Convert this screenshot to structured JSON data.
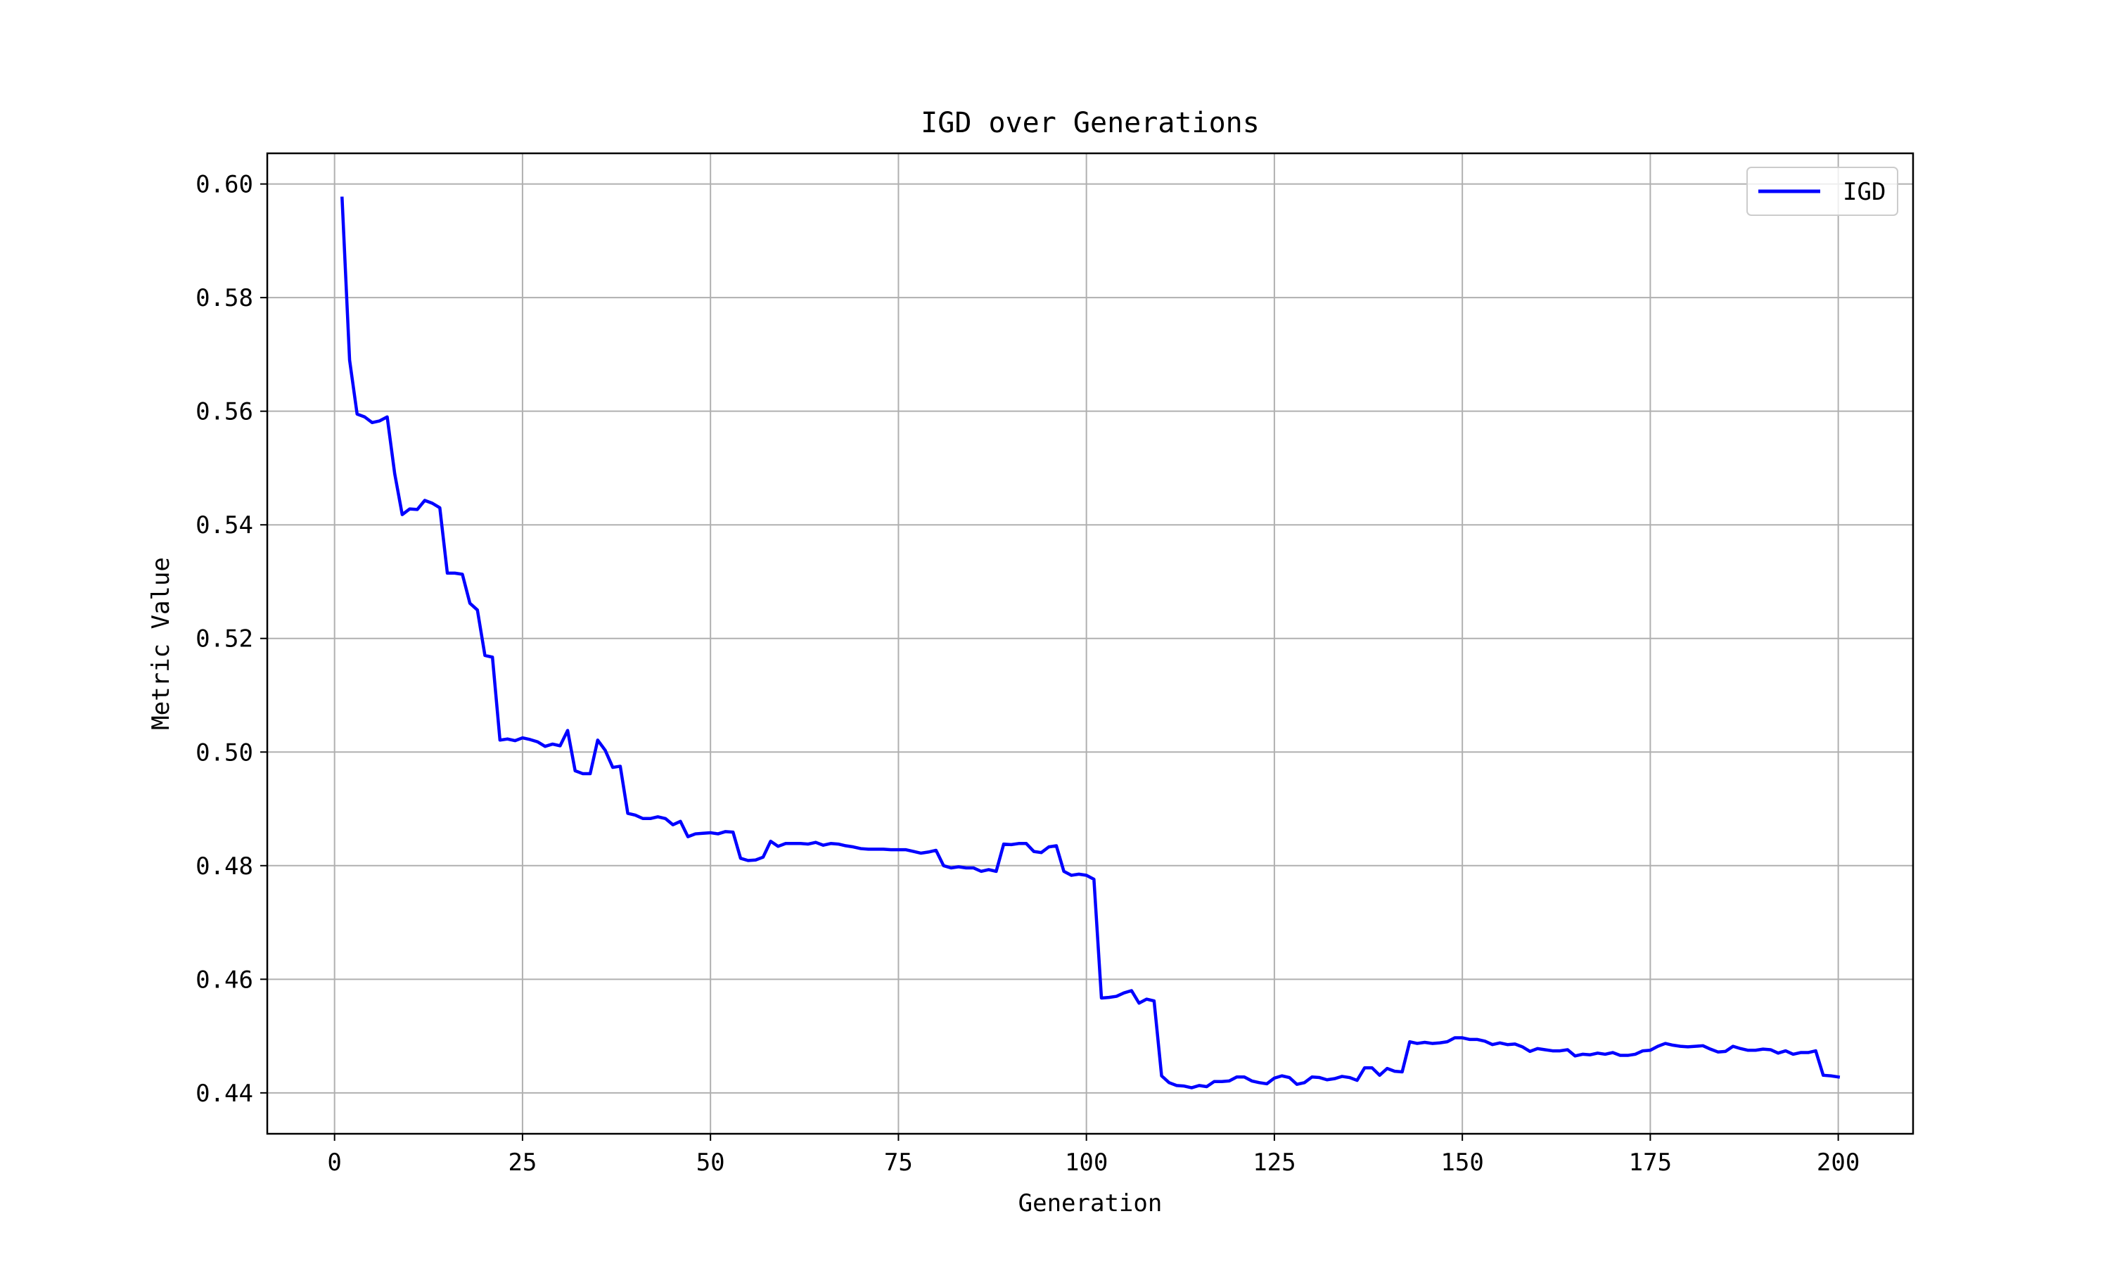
{
  "chart_data": {
    "type": "line",
    "title": "IGD over Generations",
    "xlabel": "Generation",
    "ylabel": "Metric Value",
    "xlim": [
      -8.95,
      209.95
    ],
    "ylim": [
      0.4328,
      0.6054
    ],
    "xticks": [
      0,
      25,
      50,
      75,
      100,
      125,
      150,
      175,
      200
    ],
    "xtick_labels": [
      "0",
      "25",
      "50",
      "75",
      "100",
      "125",
      "150",
      "175",
      "200"
    ],
    "yticks": [
      0.44,
      0.46,
      0.48,
      0.5,
      0.52,
      0.54,
      0.56,
      0.58,
      0.6
    ],
    "ytick_labels": [
      "0.44",
      "0.46",
      "0.48",
      "0.50",
      "0.52",
      "0.54",
      "0.56",
      "0.58",
      "0.60"
    ],
    "grid": true,
    "legend_position": "top-right",
    "series": [
      {
        "name": "IGD",
        "color": "#0000ff",
        "x": [
          1,
          2,
          3,
          4,
          5,
          6,
          7,
          8,
          9,
          10,
          11,
          12,
          13,
          14,
          15,
          16,
          17,
          18,
          19,
          20,
          21,
          22,
          23,
          24,
          25,
          26,
          27,
          28,
          29,
          30,
          31,
          32,
          33,
          34,
          35,
          36,
          37,
          38,
          39,
          40,
          41,
          42,
          43,
          44,
          45,
          46,
          47,
          48,
          49,
          50,
          51,
          52,
          53,
          54,
          55,
          56,
          57,
          58,
          59,
          60,
          61,
          62,
          63,
          64,
          65,
          66,
          67,
          68,
          69,
          70,
          71,
          72,
          73,
          74,
          75,
          76,
          77,
          78,
          79,
          80,
          81,
          82,
          83,
          84,
          85,
          86,
          87,
          88,
          89,
          90,
          91,
          92,
          93,
          94,
          95,
          96,
          97,
          98,
          99,
          100,
          101,
          102,
          103,
          104,
          105,
          106,
          107,
          108,
          109,
          110,
          111,
          112,
          113,
          114,
          115,
          116,
          117,
          118,
          119,
          120,
          121,
          122,
          123,
          124,
          125,
          126,
          127,
          128,
          129,
          130,
          131,
          132,
          133,
          134,
          135,
          136,
          137,
          138,
          139,
          140,
          141,
          142,
          143,
          144,
          145,
          146,
          147,
          148,
          149,
          150,
          151,
          152,
          153,
          154,
          155,
          156,
          157,
          158,
          159,
          160,
          161,
          162,
          163,
          164,
          165,
          166,
          167,
          168,
          169,
          170,
          171,
          172,
          173,
          174,
          175,
          176,
          177,
          178,
          179,
          180,
          181,
          182,
          183,
          184,
          185,
          186,
          187,
          188,
          189,
          190,
          191,
          192,
          193,
          194,
          195,
          196,
          197,
          198,
          199,
          200
        ],
        "values": [
          0.5975,
          0.569,
          0.5595,
          0.559,
          0.558,
          0.5583,
          0.559,
          0.549,
          0.5418,
          0.5428,
          0.5427,
          0.5443,
          0.5438,
          0.543,
          0.5315,
          0.5315,
          0.5313,
          0.5262,
          0.525,
          0.517,
          0.5167,
          0.5021,
          0.5023,
          0.502,
          0.5025,
          0.5022,
          0.5018,
          0.501,
          0.5014,
          0.5011,
          0.5038,
          0.4967,
          0.4962,
          0.4962,
          0.5021,
          0.5003,
          0.4973,
          0.4975,
          0.4892,
          0.4889,
          0.4883,
          0.4883,
          0.4886,
          0.4883,
          0.4872,
          0.4878,
          0.4851,
          0.4856,
          0.4857,
          0.4858,
          0.4856,
          0.486,
          0.4859,
          0.4813,
          0.4809,
          0.481,
          0.4815,
          0.4843,
          0.4834,
          0.4839,
          0.4839,
          0.4839,
          0.4838,
          0.4841,
          0.4836,
          0.4839,
          0.4838,
          0.4835,
          0.4833,
          0.483,
          0.4829,
          0.4829,
          0.4829,
          0.4828,
          0.4828,
          0.4828,
          0.4825,
          0.4822,
          0.4824,
          0.4827,
          0.48,
          0.4796,
          0.4798,
          0.4796,
          0.4796,
          0.479,
          0.4793,
          0.479,
          0.4838,
          0.4837,
          0.4839,
          0.4839,
          0.4825,
          0.4823,
          0.4833,
          0.4835,
          0.479,
          0.4783,
          0.4785,
          0.4783,
          0.4776,
          0.4567,
          0.4568,
          0.457,
          0.4576,
          0.458,
          0.4558,
          0.4565,
          0.4562,
          0.443,
          0.4418,
          0.4413,
          0.4412,
          0.4409,
          0.4413,
          0.4411,
          0.442,
          0.442,
          0.4421,
          0.4428,
          0.4428,
          0.4421,
          0.4418,
          0.4416,
          0.4426,
          0.443,
          0.4427,
          0.4415,
          0.4418,
          0.4428,
          0.4427,
          0.4423,
          0.4425,
          0.4429,
          0.4427,
          0.4422,
          0.4444,
          0.4444,
          0.4431,
          0.4443,
          0.4438,
          0.4437,
          0.449,
          0.4487,
          0.4489,
          0.4487,
          0.4488,
          0.449,
          0.4497,
          0.4497,
          0.4494,
          0.4494,
          0.4491,
          0.4485,
          0.4488,
          0.4485,
          0.4486,
          0.4481,
          0.4473,
          0.4478,
          0.4476,
          0.4474,
          0.4474,
          0.4476,
          0.4465,
          0.4468,
          0.4467,
          0.447,
          0.4468,
          0.4471,
          0.4466,
          0.4466,
          0.4468,
          0.4474,
          0.4475,
          0.4482,
          0.4487,
          0.4484,
          0.4482,
          0.4481,
          0.4482,
          0.4483,
          0.4477,
          0.4472,
          0.4473,
          0.4482,
          0.4478,
          0.4475,
          0.4475,
          0.4477,
          0.4476,
          0.447,
          0.4474,
          0.4468,
          0.4471,
          0.4471,
          0.4474,
          0.4431,
          0.443,
          0.4428
        ]
      }
    ]
  }
}
